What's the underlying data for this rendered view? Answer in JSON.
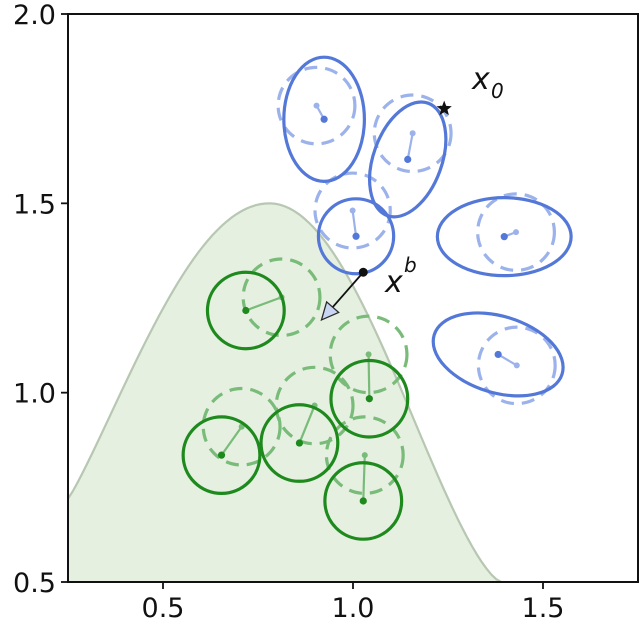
{
  "chart_data": {
    "type": "scatter",
    "title": "",
    "xlabel": "",
    "ylabel": "",
    "xlim": [
      0.25,
      1.75
    ],
    "ylim": [
      0.5,
      2.0
    ],
    "grid": false,
    "x_ticks": [
      0.5,
      1.0,
      1.5
    ],
    "y_ticks": [
      0.5,
      1.0,
      1.5,
      2.0
    ],
    "x_tick_labels": [
      "0.5",
      "1.0",
      "1.5"
    ],
    "y_tick_labels": [
      "0.5",
      "1.0",
      "1.5",
      "2.0"
    ],
    "region": {
      "description_shape": "bell",
      "x_left": 0.25,
      "y_left": 0.72,
      "peak_x": 0.78,
      "peak_y": 1.5,
      "x_right": 1.39,
      "y_base": 0.5,
      "fill": "#e6f0e1",
      "edge": "#b7c7b2"
    },
    "colors": {
      "blue": "#5478d8",
      "blue_faded": "#9cb2ea",
      "green": "#1e8a1e",
      "green_faded": "#79bb79",
      "marker": "#111111"
    },
    "blue_ellipses": [
      {
        "cx": 1.008,
        "cy": 1.413,
        "rx": 0.099,
        "ry": 0.099,
        "angle": 0,
        "ox": 0.999,
        "oy": 1.481,
        "orx": 0.099,
        "ory": 0.099,
        "oangle": 0
      },
      {
        "cx": 0.924,
        "cy": 1.722,
        "rx": 0.106,
        "ry": 0.164,
        "angle": 0,
        "ox": 0.904,
        "oy": 1.758,
        "orx": 0.101,
        "ory": 0.101,
        "oangle": 0
      },
      {
        "cx": 1.144,
        "cy": 1.616,
        "rx": 0.09,
        "ry": 0.158,
        "angle": 20,
        "ox": 1.157,
        "oy": 1.685,
        "orx": 0.101,
        "ory": 0.101,
        "oangle": 0
      },
      {
        "cx": 1.398,
        "cy": 1.412,
        "rx": 0.176,
        "ry": 0.103,
        "angle": 0,
        "ox": 1.429,
        "oy": 1.424,
        "orx": 0.101,
        "ory": 0.101,
        "oangle": 0
      },
      {
        "cx": 1.382,
        "cy": 1.101,
        "rx": 0.176,
        "ry": 0.101,
        "angle": 17,
        "ox": 1.431,
        "oy": 1.072,
        "orx": 0.101,
        "ory": 0.101,
        "oangle": 0
      }
    ],
    "green_circles": [
      {
        "cx": 0.718,
        "cy": 1.217,
        "r": 0.101,
        "ox": 0.812,
        "oy": 1.252
      },
      {
        "cx": 0.654,
        "cy": 0.835,
        "r": 0.101,
        "ox": 0.707,
        "oy": 0.91
      },
      {
        "cx": 0.859,
        "cy": 0.867,
        "r": 0.101,
        "ox": 0.899,
        "oy": 0.966
      },
      {
        "cx": 1.043,
        "cy": 0.984,
        "r": 0.101,
        "ox": 1.041,
        "oy": 1.101
      },
      {
        "cx": 1.027,
        "cy": 0.714,
        "r": 0.101,
        "ox": 1.031,
        "oy": 0.835
      }
    ],
    "annotations": [
      {
        "text": "x",
        "sub": "0",
        "x": 1.24,
        "y": 1.75,
        "marker": "star",
        "label_x": 1.28,
        "label_y": 1.79
      },
      {
        "text": "x",
        "sup": "b",
        "x": 1.027,
        "y": 1.318,
        "marker": "dot",
        "label_x": 1.05,
        "label_y": 1.27
      }
    ],
    "arrow": {
      "x1": 1.027,
      "y1": 1.318,
      "x2": 0.917,
      "y2": 1.192
    }
  }
}
